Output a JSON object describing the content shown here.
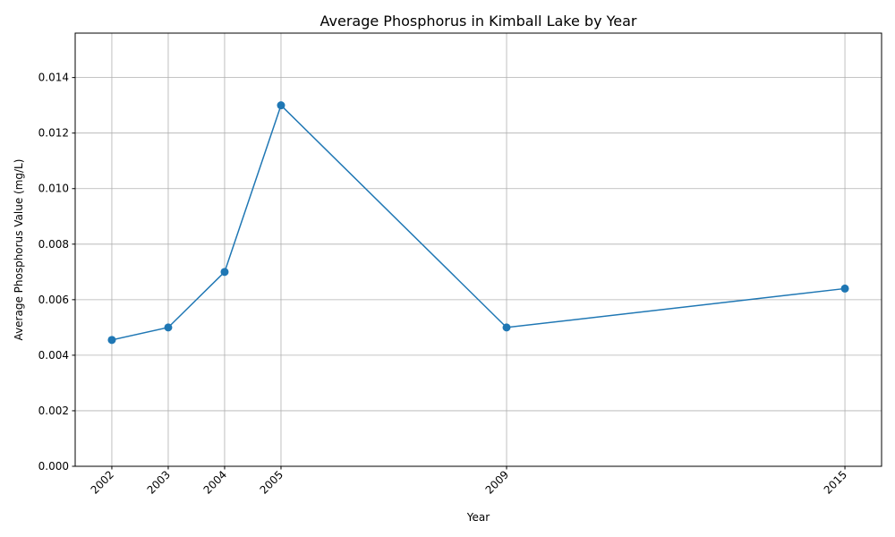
{
  "chart_data": {
    "type": "line",
    "title": "Average Phosphorus in Kimball Lake by Year",
    "xlabel": "Year",
    "ylabel": "Average Phosphorus Value (mg/L)",
    "x": [
      2002,
      2003,
      2004,
      2005,
      2009,
      2015
    ],
    "x_tick_labels": [
      "2002",
      "2003",
      "2004",
      "2005",
      "2009",
      "2015"
    ],
    "series": [
      {
        "values": [
          0.00455,
          0.005,
          0.007,
          0.013,
          0.005,
          0.0064
        ]
      }
    ],
    "xlim": [
      2001.35,
      2015.65
    ],
    "ylim": [
      0,
      0.0156
    ],
    "y_ticks": [
      0,
      0.002,
      0.004,
      0.006,
      0.008,
      0.01,
      0.012,
      0.014
    ],
    "y_tick_labels": [
      "0.000",
      "0.002",
      "0.004",
      "0.006",
      "0.008",
      "0.010",
      "0.012",
      "0.014"
    ],
    "grid": true,
    "line_color": "#1f77b4",
    "marker": "circle"
  }
}
